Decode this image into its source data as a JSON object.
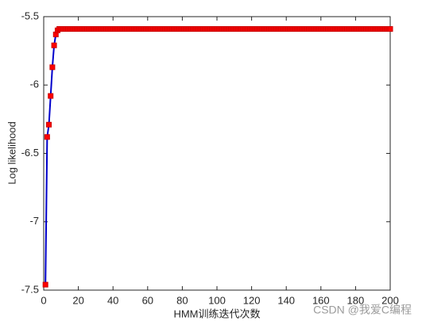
{
  "chart_data": {
    "type": "line",
    "x_label": "HMM训练迭代次数",
    "y_label": "Log likelihood",
    "watermark": "CSDN @我爱C编程",
    "xlim": [
      0,
      200
    ],
    "xticks": [
      0,
      20,
      40,
      60,
      80,
      100,
      120,
      140,
      160,
      180,
      200
    ],
    "ylim": [
      -7.5,
      -5.5
    ],
    "yticks": [
      -7.5,
      -7,
      -6.5,
      -6,
      -5.5
    ],
    "x": [
      1,
      2,
      3,
      4,
      5,
      6,
      7,
      8,
      9,
      10,
      11,
      12,
      13,
      14,
      15,
      16,
      17,
      18,
      19,
      20,
      21,
      22,
      23,
      24,
      25,
      26,
      27,
      28,
      29,
      30,
      31,
      32,
      33,
      34,
      35,
      36,
      37,
      38,
      39,
      40,
      41,
      42,
      43,
      44,
      45,
      46,
      47,
      48,
      49,
      50,
      51,
      52,
      53,
      54,
      55,
      56,
      57,
      58,
      59,
      60,
      61,
      62,
      63,
      64,
      65,
      66,
      67,
      68,
      69,
      70,
      71,
      72,
      73,
      74,
      75,
      76,
      77,
      78,
      79,
      80,
      81,
      82,
      83,
      84,
      85,
      86,
      87,
      88,
      89,
      90,
      91,
      92,
      93,
      94,
      95,
      96,
      97,
      98,
      99,
      100,
      101,
      102,
      103,
      104,
      105,
      106,
      107,
      108,
      109,
      110,
      111,
      112,
      113,
      114,
      115,
      116,
      117,
      118,
      119,
      120,
      121,
      122,
      123,
      124,
      125,
      126,
      127,
      128,
      129,
      130,
      131,
      132,
      133,
      134,
      135,
      136,
      137,
      138,
      139,
      140,
      141,
      142,
      143,
      144,
      145,
      146,
      147,
      148,
      149,
      150,
      151,
      152,
      153,
      154,
      155,
      156,
      157,
      158,
      159,
      160,
      161,
      162,
      163,
      164,
      165,
      166,
      167,
      168,
      169,
      170,
      171,
      172,
      173,
      174,
      175,
      176,
      177,
      178,
      179,
      180,
      181,
      182,
      183,
      184,
      185,
      186,
      187,
      188,
      189,
      190,
      191,
      192,
      193,
      194,
      195,
      196,
      197,
      198,
      199,
      200
    ],
    "series": [
      {
        "color": "#0000cc",
        "marker_color": "#ff0000",
        "values": [
          -7.46,
          -6.38,
          -6.29,
          -6.08,
          -5.87,
          -5.71,
          -5.63,
          -5.6,
          -5.59,
          -5.59,
          -5.59,
          -5.59,
          -5.59,
          -5.59,
          -5.59,
          -5.59,
          -5.59,
          -5.59,
          -5.59,
          -5.59,
          -5.59,
          -5.59,
          -5.59,
          -5.59,
          -5.59,
          -5.59,
          -5.59,
          -5.59,
          -5.59,
          -5.59,
          -5.59,
          -5.59,
          -5.59,
          -5.59,
          -5.59,
          -5.59,
          -5.59,
          -5.59,
          -5.59,
          -5.59,
          -5.59,
          -5.59,
          -5.59,
          -5.59,
          -5.59,
          -5.59,
          -5.59,
          -5.59,
          -5.59,
          -5.59,
          -5.59,
          -5.59,
          -5.59,
          -5.59,
          -5.59,
          -5.59,
          -5.59,
          -5.59,
          -5.59,
          -5.59,
          -5.59,
          -5.59,
          -5.59,
          -5.59,
          -5.59,
          -5.59,
          -5.59,
          -5.59,
          -5.59,
          -5.59,
          -5.59,
          -5.59,
          -5.59,
          -5.59,
          -5.59,
          -5.59,
          -5.59,
          -5.59,
          -5.59,
          -5.59,
          -5.59,
          -5.59,
          -5.59,
          -5.59,
          -5.59,
          -5.59,
          -5.59,
          -5.59,
          -5.59,
          -5.59,
          -5.59,
          -5.59,
          -5.59,
          -5.59,
          -5.59,
          -5.59,
          -5.59,
          -5.59,
          -5.59,
          -5.59,
          -5.59,
          -5.59,
          -5.59,
          -5.59,
          -5.59,
          -5.59,
          -5.59,
          -5.59,
          -5.59,
          -5.59,
          -5.59,
          -5.59,
          -5.59,
          -5.59,
          -5.59,
          -5.59,
          -5.59,
          -5.59,
          -5.59,
          -5.59,
          -5.59,
          -5.59,
          -5.59,
          -5.59,
          -5.59,
          -5.59,
          -5.59,
          -5.59,
          -5.59,
          -5.59,
          -5.59,
          -5.59,
          -5.59,
          -5.59,
          -5.59,
          -5.59,
          -5.59,
          -5.59,
          -5.59,
          -5.59,
          -5.59,
          -5.59,
          -5.59,
          -5.59,
          -5.59,
          -5.59,
          -5.59,
          -5.59,
          -5.59,
          -5.59,
          -5.59,
          -5.59,
          -5.59,
          -5.59,
          -5.59,
          -5.59,
          -5.59,
          -5.59,
          -5.59,
          -5.59,
          -5.59,
          -5.59,
          -5.59,
          -5.59,
          -5.59,
          -5.59,
          -5.59,
          -5.59,
          -5.59,
          -5.59,
          -5.59,
          -5.59,
          -5.59,
          -5.59,
          -5.59,
          -5.59,
          -5.59,
          -5.59,
          -5.59,
          -5.59,
          -5.59,
          -5.59,
          -5.59,
          -5.59,
          -5.59,
          -5.59,
          -5.59,
          -5.59,
          -5.59,
          -5.59,
          -5.59,
          -5.59,
          -5.59,
          -5.59,
          -5.59,
          -5.59,
          -5.59,
          -5.59,
          -5.59,
          -5.59
        ]
      }
    ]
  }
}
